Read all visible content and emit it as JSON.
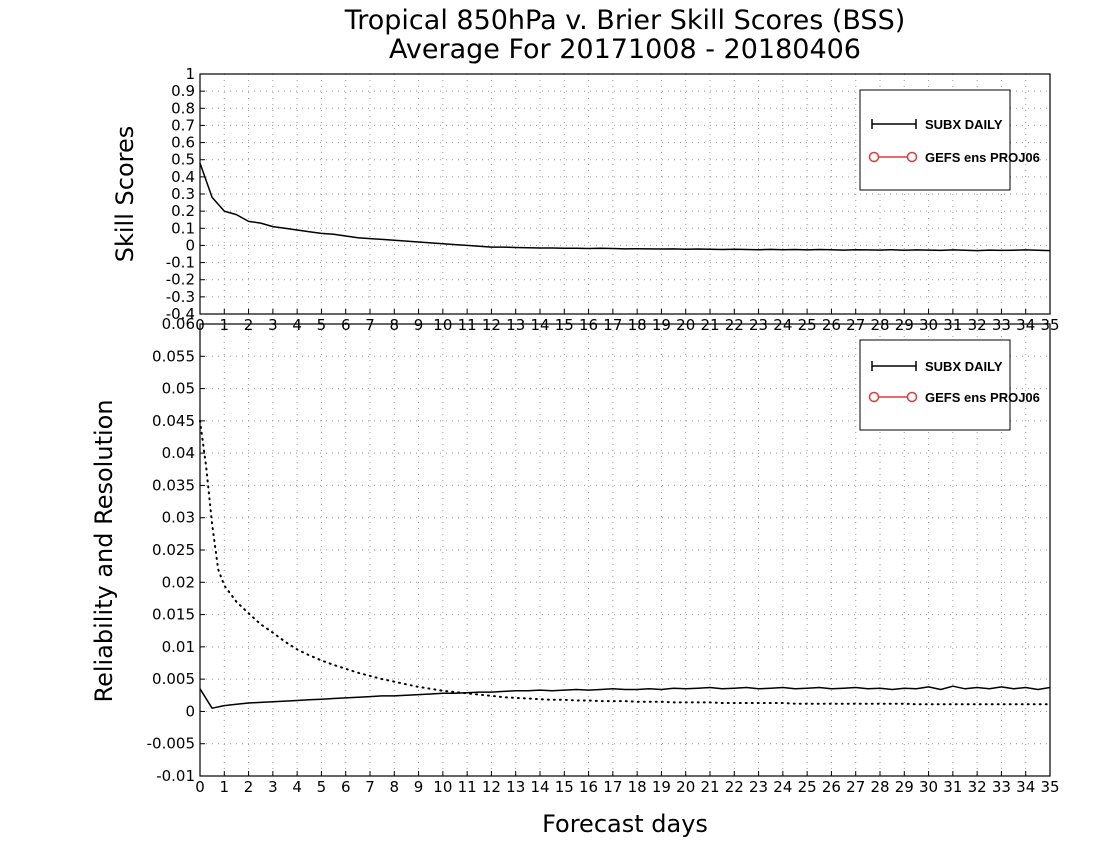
{
  "figure": {
    "title_line1": "Tropical 850hPa v. Brier Skill Scores (BSS)",
    "title_line2": "Average For 20171008 - 20180406",
    "xlabel": "Forecast days"
  },
  "chart_data": [
    {
      "type": "line",
      "panel": "top",
      "ylabel": "Skill Scores",
      "xlim": [
        0,
        35
      ],
      "ylim": [
        -0.4,
        1
      ],
      "grid": true,
      "legend_position": "top-right",
      "y_ticks": [
        "1",
        "0.9",
        "0.8",
        "0.7",
        "0.6",
        "0.5",
        "0.4",
        "0.3",
        "0.2",
        "0.1",
        "0",
        "-0.1",
        "-0.2",
        "-0.3",
        "-0.4"
      ],
      "x_ticks": [
        "0",
        "1",
        "2",
        "3",
        "4",
        "5",
        "6",
        "7",
        "8",
        "9",
        "10",
        "11",
        "12",
        "13",
        "14",
        "15",
        "16",
        "17",
        "18",
        "19",
        "20",
        "21",
        "22",
        "23",
        "24",
        "25",
        "26",
        "27",
        "28",
        "29",
        "30",
        "31",
        "32",
        "33",
        "34",
        "35"
      ],
      "legend": [
        {
          "label": "SUBX DAILY",
          "color": "#000000",
          "marker": "plus"
        },
        {
          "label": "GEFS ens PROJ06",
          "color": "#e03a3a",
          "marker": "circle"
        }
      ],
      "series": [
        {
          "name": "SUBX DAILY",
          "color": "#000000",
          "style": "solid",
          "x": [
            0,
            0.5,
            1,
            1.5,
            2,
            2.5,
            3,
            3.5,
            4,
            4.5,
            5,
            5.5,
            6,
            6.5,
            7,
            7.5,
            8,
            8.5,
            9,
            9.5,
            10,
            10.5,
            11,
            11.5,
            12,
            12.5,
            13,
            13.5,
            14,
            14.5,
            15,
            15.5,
            16,
            16.5,
            17,
            17.5,
            18,
            18.5,
            19,
            19.5,
            20,
            20.5,
            21,
            21.5,
            22,
            22.5,
            23,
            23.5,
            24,
            24.5,
            25,
            25.5,
            26,
            26.5,
            27,
            27.5,
            28,
            28.5,
            29,
            29.5,
            30,
            30.5,
            31,
            31.5,
            32,
            32.5,
            33,
            33.5,
            34,
            34.5,
            35
          ],
          "y": [
            0.48,
            0.28,
            0.2,
            0.18,
            0.14,
            0.13,
            0.11,
            0.1,
            0.09,
            0.08,
            0.07,
            0.065,
            0.055,
            0.045,
            0.04,
            0.035,
            0.03,
            0.025,
            0.02,
            0.015,
            0.01,
            0.005,
            0.0,
            -0.005,
            -0.01,
            -0.01,
            -0.012,
            -0.013,
            -0.015,
            -0.015,
            -0.017,
            -0.017,
            -0.018,
            -0.016,
            -0.018,
            -0.02,
            -0.019,
            -0.02,
            -0.021,
            -0.02,
            -0.022,
            -0.021,
            -0.022,
            -0.024,
            -0.022,
            -0.024,
            -0.025,
            -0.023,
            -0.025,
            -0.024,
            -0.026,
            -0.024,
            -0.025,
            -0.027,
            -0.025,
            -0.026,
            -0.027,
            -0.025,
            -0.028,
            -0.026,
            -0.027,
            -0.029,
            -0.026,
            -0.028,
            -0.03,
            -0.027,
            -0.029,
            -0.028,
            -0.026,
            -0.028,
            -0.03
          ]
        }
      ]
    },
    {
      "type": "line",
      "panel": "bottom",
      "ylabel": "Reliability and Resolution",
      "xlim": [
        0,
        35
      ],
      "ylim": [
        -0.01,
        0.06
      ],
      "grid": true,
      "legend_position": "top-right",
      "y_ticks": [
        "0.06",
        "0.055",
        "0.05",
        "0.045",
        "0.04",
        "0.035",
        "0.03",
        "0.025",
        "0.02",
        "0.015",
        "0.01",
        "0.005",
        "0",
        "-0.005",
        "-0.01"
      ],
      "x_ticks": [
        "0",
        "1",
        "2",
        "3",
        "4",
        "5",
        "6",
        "7",
        "8",
        "9",
        "10",
        "11",
        "12",
        "13",
        "14",
        "15",
        "16",
        "17",
        "18",
        "19",
        "20",
        "21",
        "22",
        "23",
        "24",
        "25",
        "26",
        "27",
        "28",
        "29",
        "30",
        "31",
        "32",
        "33",
        "34",
        "35"
      ],
      "legend": [
        {
          "label": "SUBX DAILY",
          "color": "#000000",
          "marker": "plus"
        },
        {
          "label": "GEFS ens PROJ06",
          "color": "#e03a3a",
          "marker": "circle"
        }
      ],
      "series": [
        {
          "name": "SUBX DAILY",
          "color": "#000000",
          "style": "solid",
          "x": [
            0,
            0.5,
            1,
            1.5,
            2,
            2.5,
            3,
            3.5,
            4,
            4.5,
            5,
            5.5,
            6,
            6.5,
            7,
            7.5,
            8,
            8.5,
            9,
            9.5,
            10,
            10.5,
            11,
            11.5,
            12,
            12.5,
            13,
            13.5,
            14,
            14.5,
            15,
            15.5,
            16,
            16.5,
            17,
            17.5,
            18,
            18.5,
            19,
            19.5,
            20,
            20.5,
            21,
            21.5,
            22,
            22.5,
            23,
            23.5,
            24,
            24.5,
            25,
            25.5,
            26,
            26.5,
            27,
            27.5,
            28,
            28.5,
            29,
            29.5,
            30,
            30.5,
            31,
            31.5,
            32,
            32.5,
            33,
            33.5,
            34,
            34.5,
            35
          ],
          "y": [
            0.0035,
            0.0005,
            0.0009,
            0.0011,
            0.0013,
            0.0014,
            0.0015,
            0.0016,
            0.0017,
            0.0018,
            0.0019,
            0.002,
            0.0021,
            0.0022,
            0.0023,
            0.0024,
            0.0024,
            0.0025,
            0.0026,
            0.0027,
            0.0028,
            0.0028,
            0.0029,
            0.003,
            0.003,
            0.0031,
            0.0032,
            0.0032,
            0.0033,
            0.0032,
            0.0033,
            0.0034,
            0.0033,
            0.0034,
            0.0035,
            0.0034,
            0.0034,
            0.0035,
            0.0034,
            0.0036,
            0.0035,
            0.0036,
            0.0037,
            0.0035,
            0.0036,
            0.0037,
            0.0035,
            0.0036,
            0.0037,
            0.0035,
            0.0036,
            0.0037,
            0.0035,
            0.0036,
            0.0037,
            0.0035,
            0.0036,
            0.0034,
            0.0036,
            0.0035,
            0.0038,
            0.0034,
            0.0039,
            0.0035,
            0.0037,
            0.0035,
            0.0038,
            0.0035,
            0.0037,
            0.0034,
            0.0037
          ]
        },
        {
          "name": "SUBX DAILY",
          "color": "#000000",
          "style": "dotted",
          "x": [
            0,
            0.25,
            0.5,
            0.75,
            1,
            1.5,
            2,
            2.5,
            3,
            3.5,
            4,
            4.5,
            5,
            5.5,
            6,
            6.5,
            7,
            7.5,
            8,
            8.5,
            9,
            9.5,
            10,
            10.5,
            11,
            11.5,
            12,
            12.5,
            13,
            13.5,
            14,
            14.5,
            15,
            15.5,
            16,
            16.5,
            17,
            17.5,
            18,
            18.5,
            19,
            19.5,
            20,
            20.5,
            21,
            21.5,
            22,
            22.5,
            23,
            23.5,
            24,
            24.5,
            25,
            25.5,
            26,
            26.5,
            27,
            27.5,
            28,
            28.5,
            29,
            29.5,
            30,
            30.5,
            31,
            31.5,
            32,
            32.5,
            33,
            33.5,
            34,
            34.5,
            35
          ],
          "y": [
            0.045,
            0.038,
            0.029,
            0.022,
            0.0195,
            0.017,
            0.0152,
            0.0135,
            0.0122,
            0.0108,
            0.0096,
            0.0087,
            0.0079,
            0.0072,
            0.0066,
            0.006,
            0.0055,
            0.005,
            0.0046,
            0.0042,
            0.0038,
            0.0035,
            0.0032,
            0.003,
            0.0028,
            0.0026,
            0.0024,
            0.0022,
            0.0021,
            0.002,
            0.0019,
            0.0018,
            0.0018,
            0.0017,
            0.0017,
            0.0016,
            0.0016,
            0.0016,
            0.0015,
            0.0015,
            0.0015,
            0.0014,
            0.0014,
            0.0014,
            0.0014,
            0.0013,
            0.0013,
            0.0013,
            0.0013,
            0.0013,
            0.0013,
            0.0012,
            0.0012,
            0.0012,
            0.0012,
            0.0012,
            0.0012,
            0.0012,
            0.0012,
            0.0012,
            0.0012,
            0.0011,
            0.0011,
            0.0011,
            0.0011,
            0.0011,
            0.0011,
            0.0011,
            0.0011,
            0.0011,
            0.0011,
            0.0011,
            0.0011
          ]
        }
      ]
    }
  ]
}
